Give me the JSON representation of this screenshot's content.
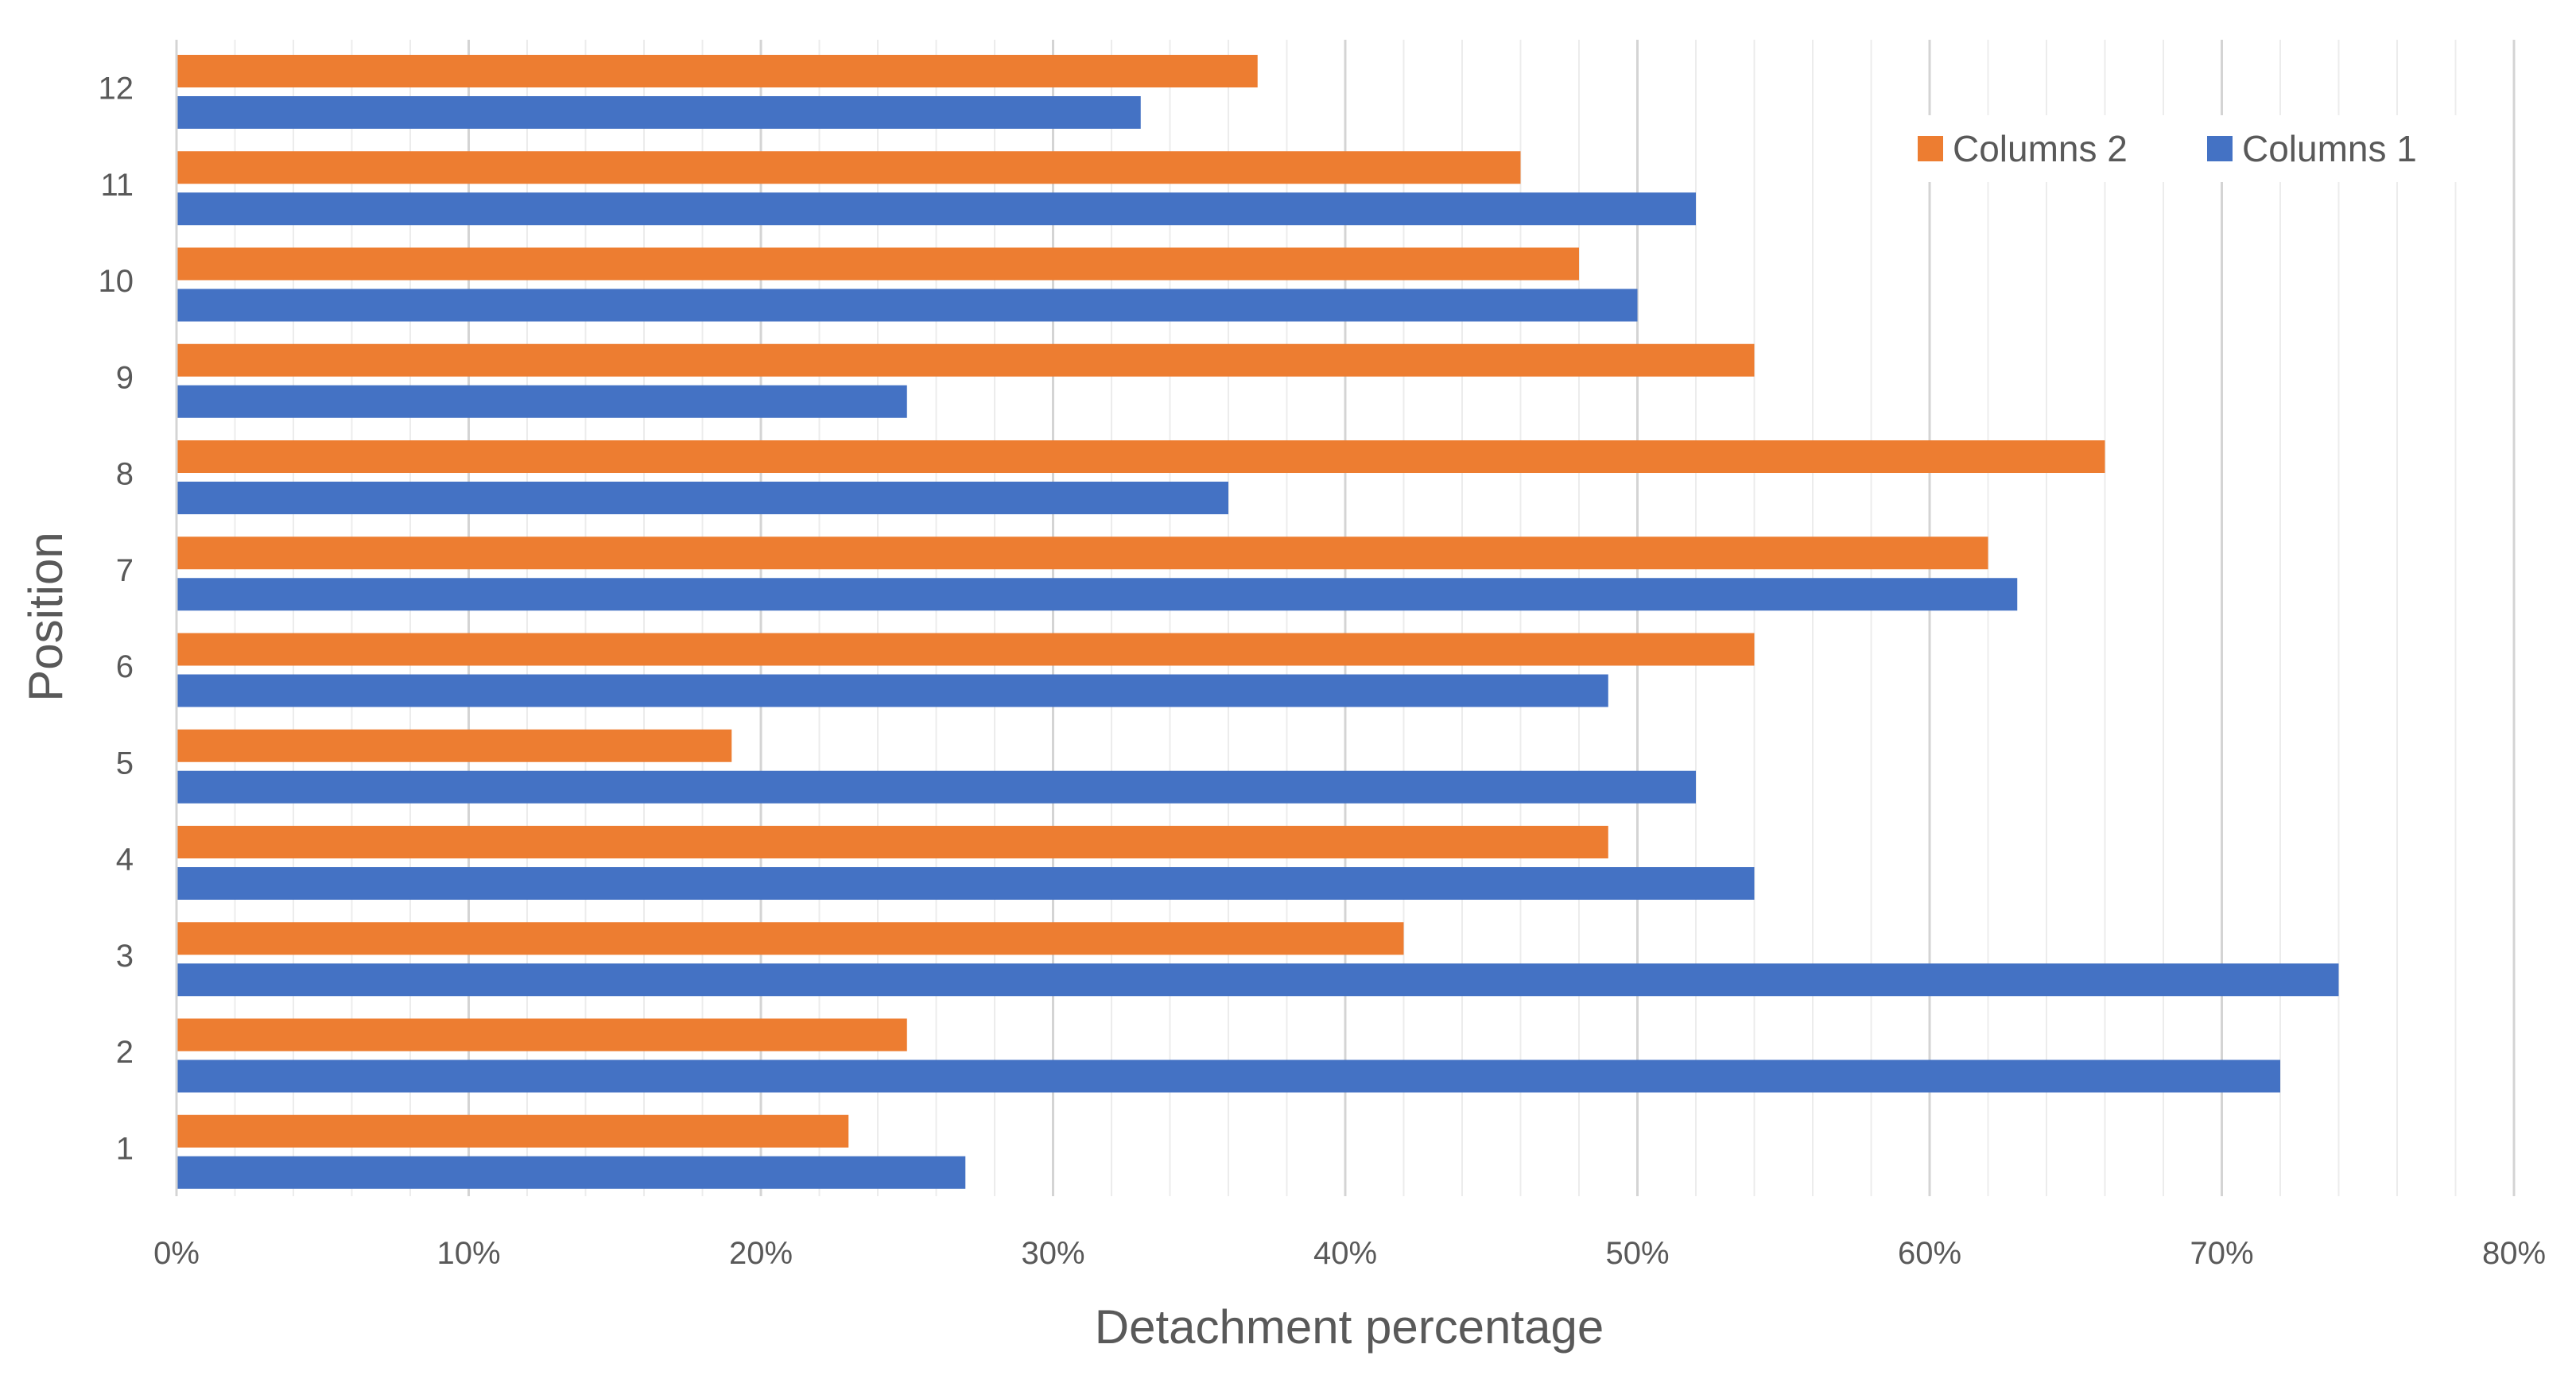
{
  "chart_data": {
    "type": "bar",
    "orientation": "horizontal",
    "title": "",
    "xlabel": "Detachment percentage",
    "ylabel": "Position",
    "xlim": [
      0,
      80
    ],
    "x_ticks": [
      "0%",
      "10%",
      "20%",
      "30%",
      "40%",
      "50%",
      "60%",
      "70%",
      "80%"
    ],
    "categories": [
      "1",
      "2",
      "3",
      "4",
      "5",
      "6",
      "7",
      "8",
      "9",
      "10",
      "11",
      "12"
    ],
    "series": [
      {
        "name": "Columns 1",
        "color": "#4472C4",
        "values": [
          27,
          72,
          74,
          54,
          52,
          49,
          63,
          36,
          25,
          50,
          52,
          33
        ]
      },
      {
        "name": "Columns 2",
        "color": "#ED7D31",
        "values": [
          23,
          25,
          42,
          49,
          19,
          54,
          62,
          66,
          54,
          48,
          46,
          37
        ]
      }
    ],
    "legend": {
      "position": "top-right",
      "order": [
        "Columns 2",
        "Columns 1"
      ]
    },
    "grid": {
      "major": true,
      "minor": true
    }
  }
}
